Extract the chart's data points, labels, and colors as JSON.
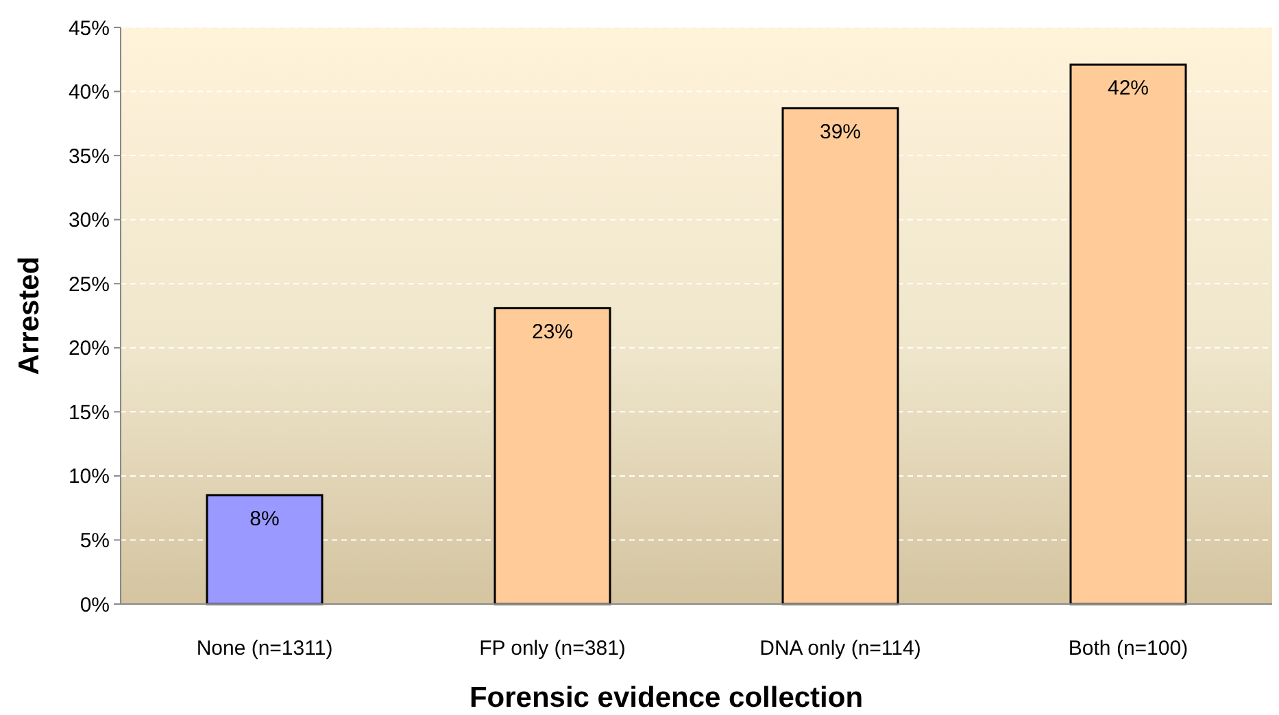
{
  "chart_data": {
    "type": "bar",
    "xlabel": "Forensic evidence collection",
    "ylabel": "Arrested",
    "categories": [
      "None (n=1311)",
      "FP only (n=381)",
      "DNA only (n=114)",
      "Both (n=100)"
    ],
    "values": [
      8.5,
      23.1,
      38.7,
      42.1
    ],
    "colors": [
      "#9999ff",
      "#ffcc99",
      "#ffcc99",
      "#ffcc99"
    ],
    "value_labels": [
      "8%",
      "23%",
      "39%",
      "42%"
    ],
    "ylim": [
      0,
      45
    ],
    "yticks": [
      {
        "value": 0,
        "label": "0%"
      },
      {
        "value": 5,
        "label": "5%"
      },
      {
        "value": 10,
        "label": "10%"
      },
      {
        "value": 15,
        "label": "15%"
      },
      {
        "value": 20,
        "label": "20%"
      },
      {
        "value": 25,
        "label": "25%"
      },
      {
        "value": 30,
        "label": "30%"
      },
      {
        "value": 35,
        "label": "35%"
      },
      {
        "value": 40,
        "label": "40%"
      },
      {
        "value": 45,
        "label": "45%"
      }
    ],
    "grid": "y"
  }
}
